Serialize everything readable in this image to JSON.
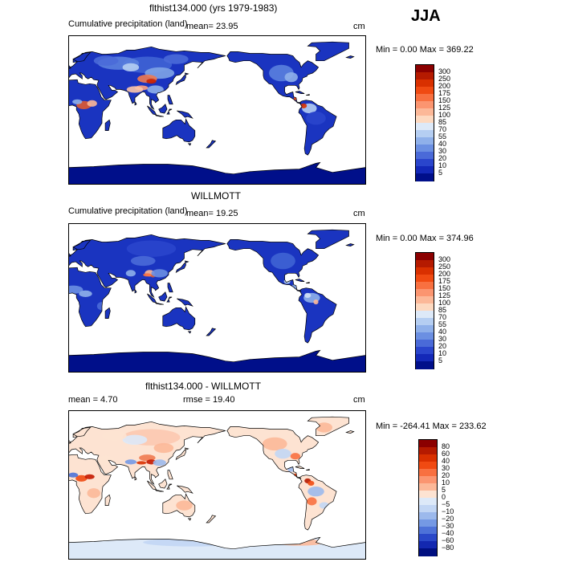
{
  "season": "JJA",
  "panels": [
    {
      "title": "flthist134.000 (yrs 1979-1983)",
      "subtitle": "Cumulative precipitation (land)",
      "mean": "mean=   23.95",
      "units": "cm",
      "minmax": "Min =    0.00 Max = 369.22",
      "map_type": "precip",
      "colorbar": {
        "labels": [
          "300",
          "250",
          "200",
          "175",
          "150",
          "125",
          "100",
          "85",
          "70",
          "55",
          "40",
          "30",
          "20",
          "10",
          "5"
        ],
        "colors": [
          "#8b0000",
          "#b51a00",
          "#d93000",
          "#f04a12",
          "#f87040",
          "#fb9570",
          "#fcb898",
          "#fdd9c0",
          "#dde9f8",
          "#b5cef2",
          "#8fb0ea",
          "#6b8fe2",
          "#4a6ad8",
          "#2a45cc",
          "#1328b8",
          "#000f8a"
        ]
      }
    },
    {
      "title": "WILLMOTT",
      "subtitle": "Cumulative precipitation (land)",
      "mean": "mean=   19.25",
      "units": "cm",
      "minmax": "Min =    0.00 Max = 374.96",
      "map_type": "precip",
      "colorbar": {
        "labels": [
          "300",
          "250",
          "200",
          "175",
          "150",
          "125",
          "100",
          "85",
          "70",
          "55",
          "40",
          "30",
          "20",
          "10",
          "5"
        ],
        "colors": [
          "#8b0000",
          "#b51a00",
          "#d93000",
          "#f04a12",
          "#f87040",
          "#fb9570",
          "#fcb898",
          "#fdd9c0",
          "#dde9f8",
          "#b5cef2",
          "#8fb0ea",
          "#6b8fe2",
          "#4a6ad8",
          "#2a45cc",
          "#1328b8",
          "#000f8a"
        ]
      }
    },
    {
      "title": "flthist134.000 - WILLMOTT",
      "mean": "mean =    4.70",
      "rmse": "rmse =   19.40",
      "units": "cm",
      "minmax": "Min = -264.41 Max = 233.62",
      "map_type": "diff",
      "colorbar": {
        "labels": [
          "80",
          "60",
          "40",
          "30",
          "20",
          "10",
          "5",
          "0",
          "−5",
          "−10",
          "−20",
          "−30",
          "−40",
          "−60",
          "−80"
        ],
        "colors": [
          "#8b0000",
          "#b51a00",
          "#d93000",
          "#f04a12",
          "#f87040",
          "#fb9570",
          "#fcb898",
          "#fde3d2",
          "#dde9f8",
          "#c2d6f4",
          "#9cb9ec",
          "#7599e4",
          "#4e72d8",
          "#2a48c8",
          "#1328b0",
          "#000f80"
        ]
      }
    }
  ]
}
